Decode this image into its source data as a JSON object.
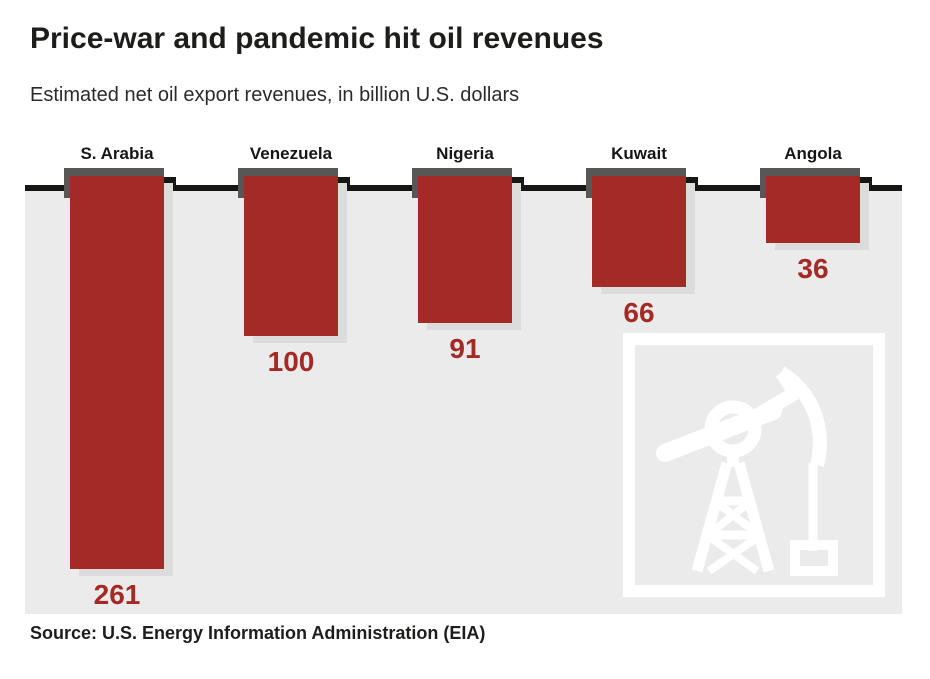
{
  "title": "Price-war and pandemic hit oil revenues",
  "subtitle": "Estimated net oil export revenues, in billion U.S. dollars",
  "source": "Source: U.S. Energy Information Administration (EIA)",
  "colors": {
    "bar": "#a42a26",
    "bar_cap": "#575756",
    "baseline": "#161615",
    "plot_background": "#ebebeb",
    "value_label": "#a42a26",
    "text": "#1d1d1b"
  },
  "icons": {
    "oil_pumpjack": "oil-pumpjack-icon"
  },
  "chart_data": {
    "type": "bar",
    "orientation": "downward",
    "categories": [
      "S. Arabia",
      "Venezuela",
      "Nigeria",
      "Kuwait",
      "Angola"
    ],
    "values": [
      261,
      100,
      91,
      66,
      36
    ],
    "title": "Price-war and pandemic hit oil revenues",
    "subtitle": "Estimated net oil export revenues, in billion U.S. dollars",
    "xlabel": "",
    "ylabel": "billion U.S. dollars",
    "ylim": [
      0,
      280
    ],
    "grid": false,
    "legend": "none",
    "value_labels_shown": true,
    "annotation_icon": "oil pump jack in white square frame, bottom right"
  }
}
